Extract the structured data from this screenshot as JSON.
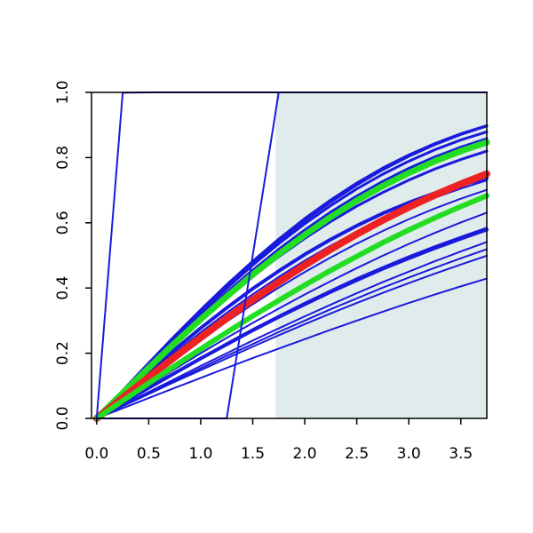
{
  "chart_data": {
    "type": "line",
    "title": "",
    "xlabel": "",
    "ylabel": "",
    "xlim": [
      -0.05,
      3.75
    ],
    "ylim": [
      0,
      1
    ],
    "x_ticks": [
      "0.0",
      "0.5",
      "1.0",
      "1.5",
      "2.0",
      "2.5",
      "3.0",
      "3.5"
    ],
    "y_ticks": [
      "0.0",
      "0.2",
      "0.4",
      "0.6",
      "0.8",
      "1.0"
    ],
    "shaded_region": {
      "x_from": 1.72,
      "x_to": 3.75,
      "y_from": 0,
      "y_to": 1,
      "color": "#e0ecec"
    },
    "colors": {
      "blue": "#1a1adc",
      "red": "#ee2222",
      "green": "#22dd22",
      "frame": "#000000"
    },
    "x": [
      0,
      0.25,
      0.5,
      0.75,
      1.0,
      1.25,
      1.5,
      1.75,
      2.0,
      2.25,
      2.5,
      2.75,
      3.0,
      3.25,
      3.5,
      3.75
    ],
    "series": [
      {
        "color": "blue",
        "width": 2,
        "values": [
          0,
          0.0625,
          0.124,
          0.184,
          0.242,
          0.297,
          0.35,
          0.401,
          0.449,
          0.494,
          0.536,
          0.575,
          0.611,
          0.644,
          0.674,
          0.701
        ]
      },
      {
        "color": "blue",
        "width": 2,
        "values": [
          0,
          0.0685,
          0.136,
          0.201,
          0.264,
          0.324,
          0.381,
          0.434,
          0.484,
          0.53,
          0.572,
          0.611,
          0.646,
          0.677,
          0.705,
          0.73
        ]
      },
      {
        "color": "blue",
        "width": 2,
        "values": [
          0,
          0.0506,
          0.101,
          0.151,
          0.2,
          0.247,
          0.293,
          0.337,
          0.38,
          0.421,
          0.461,
          0.499,
          0.535,
          0.569,
          0.601,
          0.631
        ]
      },
      {
        "color": "blue",
        "width": 2,
        "values": [
          0,
          0.0475,
          0.0946,
          0.141,
          0.186,
          0.231,
          0.274,
          0.315,
          0.355,
          0.393,
          0.43,
          0.464,
          0.497,
          0.528,
          0.557,
          0.585
        ]
      },
      {
        "color": "blue",
        "width": 2,
        "values": [
          0,
          0.0406,
          0.081,
          0.121,
          0.161,
          0.2,
          0.239,
          0.276,
          0.313,
          0.349,
          0.384,
          0.418,
          0.45,
          0.482,
          0.512,
          0.541
        ]
      },
      {
        "color": "blue",
        "width": 2,
        "values": [
          0,
          0.039,
          0.0778,
          0.116,
          0.154,
          0.192,
          0.228,
          0.265,
          0.3,
          0.335,
          0.368,
          0.401,
          0.432,
          0.462,
          0.491,
          0.519
        ]
      },
      {
        "color": "blue",
        "width": 2,
        "values": [
          0,
          0.0375,
          0.0748,
          0.112,
          0.148,
          0.184,
          0.22,
          0.255,
          0.289,
          0.322,
          0.354,
          0.385,
          0.415,
          0.444,
          0.472,
          0.499
        ]
      },
      {
        "color": "blue",
        "width": 2,
        "values": [
          0,
          0.0313,
          0.0625,
          0.0935,
          0.124,
          0.155,
          0.185,
          0.214,
          0.243,
          0.272,
          0.3,
          0.327,
          0.354,
          0.38,
          0.405,
          0.429
        ]
      },
      {
        "color": "blue",
        "width": 4,
        "values": [
          0,
          0.072,
          0.143,
          0.211,
          0.277,
          0.339,
          0.398,
          0.452,
          0.503,
          0.549,
          0.591,
          0.629,
          0.662,
          0.691,
          0.716,
          0.737
        ]
      },
      {
        "color": "blue",
        "width": 4,
        "values": [
          0,
          0.0469,
          0.0934,
          0.139,
          0.184,
          0.227,
          0.27,
          0.311,
          0.35,
          0.388,
          0.424,
          0.459,
          0.491,
          0.522,
          0.551,
          0.579
        ]
      },
      {
        "color": "blue",
        "width": 3,
        "values": [
          0,
          0.078,
          0.155,
          0.23,
          0.302,
          0.37,
          0.435,
          0.496,
          0.552,
          0.604,
          0.651,
          0.693,
          0.731,
          0.765,
          0.794,
          0.82
        ]
      },
      {
        "color": "blue",
        "width": 3,
        "values": [
          0,
          0.081,
          0.161,
          0.239,
          0.315,
          0.387,
          0.455,
          0.519,
          0.578,
          0.633,
          0.682,
          0.727,
          0.767,
          0.802,
          0.832,
          0.858
        ]
      },
      {
        "color": "blue",
        "width": 3,
        "values": [
          0,
          0.0845,
          0.168,
          0.25,
          0.329,
          0.405,
          0.477,
          0.544,
          0.607,
          0.664,
          0.716,
          0.763,
          0.804,
          0.84,
          0.871,
          0.897
        ]
      },
      {
        "color": "blue",
        "width": 3,
        "values": [
          0,
          0.0855,
          0.17,
          0.253,
          0.333,
          0.41,
          0.482,
          0.55,
          0.613,
          0.67,
          0.722,
          0.768,
          0.808,
          0.843,
          0.873,
          0.898
        ]
      },
      {
        "color": "blue",
        "width": 3,
        "values": [
          0,
          0.083,
          0.165,
          0.246,
          0.324,
          0.399,
          0.47,
          0.536,
          0.597,
          0.653,
          0.704,
          0.749,
          0.789,
          0.824,
          0.854,
          0.879
        ]
      },
      {
        "color": "blue",
        "width": 2,
        "values": [
          0,
          0.0795,
          0.158,
          0.236,
          0.311,
          0.383,
          0.451,
          0.515,
          0.574,
          0.628,
          0.677,
          0.72,
          0.758,
          0.791,
          0.82,
          0.844
        ]
      },
      {
        "color": "blue",
        "width": 4,
        "values": [
          0,
          0.08,
          0.159,
          0.237,
          0.312,
          0.384,
          0.452,
          0.516,
          0.575,
          0.629,
          0.678,
          0.722,
          0.761,
          0.795,
          0.824,
          0.85
        ]
      },
      {
        "color": "green",
        "width": 7,
        "values": [
          0,
          0.078,
          0.155,
          0.231,
          0.304,
          0.374,
          0.441,
          0.504,
          0.563,
          0.618,
          0.668,
          0.713,
          0.753,
          0.789,
          0.82,
          0.847
        ]
      },
      {
        "color": "red",
        "width": 8,
        "values": [
          0,
          0.063,
          0.126,
          0.188,
          0.248,
          0.307,
          0.364,
          0.418,
          0.47,
          0.519,
          0.565,
          0.608,
          0.648,
          0.685,
          0.719,
          0.75
        ]
      },
      {
        "color": "green",
        "width": 6,
        "values": [
          0,
          0.054,
          0.108,
          0.161,
          0.213,
          0.264,
          0.314,
          0.362,
          0.409,
          0.454,
          0.497,
          0.539,
          0.578,
          0.615,
          0.65,
          0.683
        ]
      },
      {
        "color": "blue",
        "width": 2,
        "values": [
          0,
          0.999,
          1,
          1,
          1,
          1,
          1,
          1,
          1,
          1,
          1,
          1,
          1,
          1,
          1,
          1
        ]
      },
      {
        "color": "blue",
        "width": 2,
        "values": [
          0,
          0,
          0,
          0,
          0,
          0,
          0.5,
          1,
          1,
          1,
          1,
          1,
          1,
          1,
          1,
          1
        ]
      }
    ]
  }
}
